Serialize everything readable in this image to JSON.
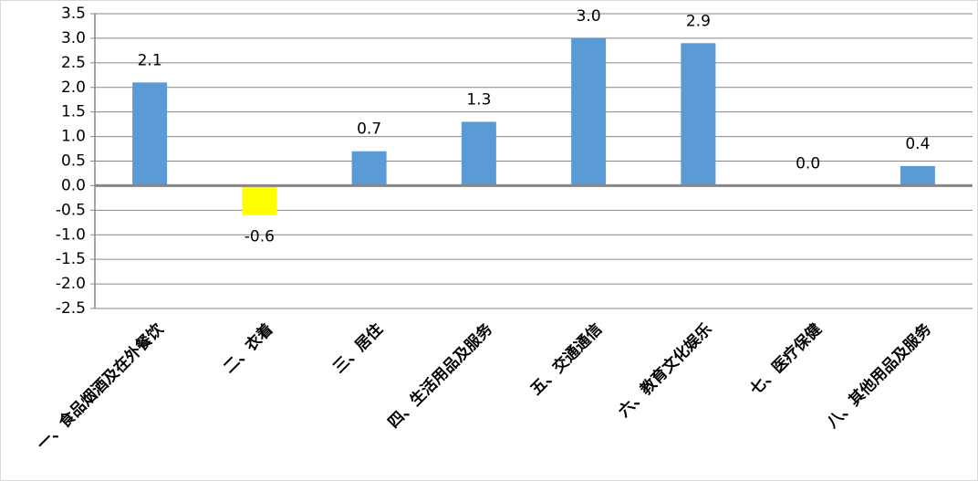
{
  "chart_data": {
    "type": "bar",
    "categories": [
      "一、食品烟酒及在外餐饮",
      "二、衣着",
      "三、居住",
      "四、生活用品及服务",
      "五、交通通信",
      "六、教育文化娱乐",
      "七、医疗保健",
      "八、其他用品及服务"
    ],
    "values": [
      2.1,
      -0.6,
      0.7,
      1.3,
      3.0,
      2.9,
      0.0,
      0.4
    ],
    "value_labels": [
      "2.1",
      "-0.6",
      "0.7",
      "1.3",
      "3.0",
      "2.9",
      "0.0",
      "0.4"
    ],
    "colors": [
      "#5b9bd5",
      "#ffff00",
      "#5b9bd5",
      "#5b9bd5",
      "#5b9bd5",
      "#5b9bd5",
      "#5b9bd5",
      "#5b9bd5"
    ],
    "ylim": [
      -2.5,
      3.5
    ],
    "yticks": [
      3.5,
      {
        "value": 3,
        "label": "3.0"
      },
      2.5,
      {
        "value": 2,
        "label": "2.0"
      },
      1.5,
      {
        "value": 1,
        "label": "1.0"
      },
      0.5,
      {
        "value": 0,
        "label": "0.0"
      },
      -0.5,
      {
        "value": -1,
        "label": "-1.0"
      },
      -1.5,
      {
        "value": -2,
        "label": "-2.0"
      },
      -2.5
    ],
    "grid": true
  }
}
